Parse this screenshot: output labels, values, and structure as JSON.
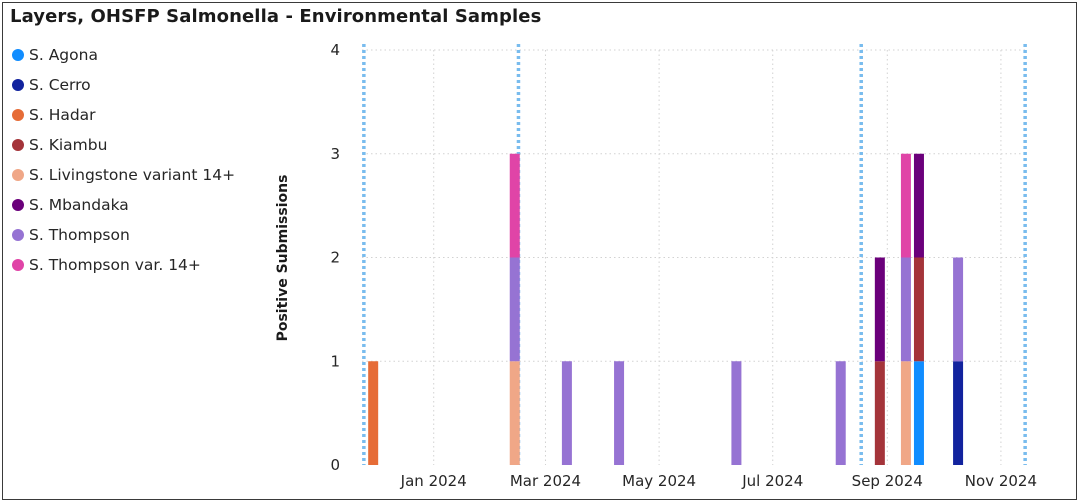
{
  "chart_data": {
    "type": "bar",
    "stacked": true,
    "title": "Layers, OHSFP Salmonella - Environmental Samples",
    "ylabel": "Positive Submissions",
    "xlabel": "",
    "ylim": [
      0,
      4
    ],
    "yticks": [
      "0",
      "1",
      "2",
      "3",
      "4"
    ],
    "x_axis": {
      "type": "date",
      "range": [
        "2023-12-09",
        "2024-11-30"
      ],
      "tick_labels": [
        {
          "date": "2024-01-01",
          "label": "Jan 2024"
        },
        {
          "date": "2024-03-01",
          "label": "Mar 2024"
        },
        {
          "date": "2024-05-01",
          "label": "May 2024"
        },
        {
          "date": "2024-07-01",
          "label": "Jul 2024"
        },
        {
          "date": "2024-09-01",
          "label": "Sep 2024"
        },
        {
          "date": "2024-11-01",
          "label": "Nov 2024"
        }
      ],
      "reference_lines": [
        "2023-12-10",
        "2024-03-02",
        "2024-09-02",
        "2024-11-29"
      ]
    },
    "grid": true,
    "legend_position": "left",
    "series": [
      {
        "name": "S. Agona",
        "color": "#118DFF"
      },
      {
        "name": "S. Cerro",
        "color": "#12239E"
      },
      {
        "name": "S. Hadar",
        "color": "#E66C37"
      },
      {
        "name": "S. Kiambu",
        "color": "#A4343A"
      },
      {
        "name": "S. Livingstone variant 14+",
        "color": "#F0A787"
      },
      {
        "name": "S. Mbandaka",
        "color": "#6B007B"
      },
      {
        "name": "S. Thompson",
        "color": "#9673D3"
      },
      {
        "name": "S. Thompson var. 14+",
        "color": "#E044A7"
      }
    ],
    "bars": [
      {
        "date": "2023-12-15",
        "segments": [
          {
            "series": "S. Hadar",
            "value": 1
          }
        ]
      },
      {
        "date": "2024-02-29",
        "segments": [
          {
            "series": "S. Livingstone variant 14+",
            "value": 1
          },
          {
            "series": "S. Thompson",
            "value": 1
          },
          {
            "series": "S. Thompson var. 14+",
            "value": 1
          }
        ]
      },
      {
        "date": "2024-03-28",
        "segments": [
          {
            "series": "S. Thompson",
            "value": 1
          }
        ]
      },
      {
        "date": "2024-04-25",
        "segments": [
          {
            "series": "S. Thompson",
            "value": 1
          }
        ]
      },
      {
        "date": "2024-06-27",
        "segments": [
          {
            "series": "S. Thompson",
            "value": 1
          }
        ]
      },
      {
        "date": "2024-08-22",
        "segments": [
          {
            "series": "S. Thompson",
            "value": 1
          }
        ]
      },
      {
        "date": "2024-09-12",
        "segments": [
          {
            "series": "S. Kiambu",
            "value": 1
          },
          {
            "series": "S. Mbandaka",
            "value": 1
          }
        ]
      },
      {
        "date": "2024-09-26",
        "segments": [
          {
            "series": "S. Livingstone variant 14+",
            "value": 1
          },
          {
            "series": "S. Thompson",
            "value": 1
          },
          {
            "series": "S. Thompson var. 14+",
            "value": 1
          }
        ]
      },
      {
        "date": "2024-10-03",
        "segments": [
          {
            "series": "S. Agona",
            "value": 1
          },
          {
            "series": "S. Kiambu",
            "value": 1
          },
          {
            "series": "S. Mbandaka",
            "value": 1
          }
        ]
      },
      {
        "date": "2024-10-24",
        "segments": [
          {
            "series": "S. Cerro",
            "value": 1
          },
          {
            "series": "S. Thompson",
            "value": 1
          }
        ]
      }
    ]
  }
}
